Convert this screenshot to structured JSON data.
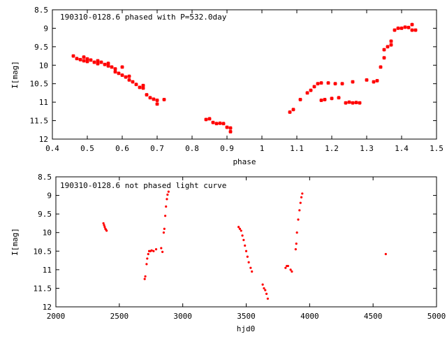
{
  "chart_data": [
    {
      "type": "scatter",
      "title": "190310-0128.6 phased with P=532.0day",
      "xlabel": "phase",
      "ylabel": "I[mag]",
      "xlim": [
        0.4,
        1.5
      ],
      "ylim": [
        12,
        8.5
      ],
      "y_inverted": true,
      "xticks": [
        "0.4",
        "0.5",
        "0.6",
        "0.7",
        "0.8",
        "0.9",
        "1",
        "1.1",
        "1.2",
        "1.3",
        "1.4",
        "1.5"
      ],
      "yticks": [
        "8.5",
        "9",
        "9.5",
        "10",
        "10.5",
        "11",
        "11.5",
        "12"
      ],
      "grid": false,
      "marker": "cross",
      "series_color": "#ff0000",
      "points": [
        [
          0.46,
          9.75
        ],
        [
          0.47,
          9.82
        ],
        [
          0.48,
          9.85
        ],
        [
          0.49,
          9.78
        ],
        [
          0.49,
          9.88
        ],
        [
          0.5,
          9.83
        ],
        [
          0.5,
          9.9
        ],
        [
          0.51,
          9.86
        ],
        [
          0.52,
          9.92
        ],
        [
          0.53,
          9.88
        ],
        [
          0.53,
          9.96
        ],
        [
          0.54,
          9.92
        ],
        [
          0.55,
          9.98
        ],
        [
          0.56,
          9.95
        ],
        [
          0.56,
          10.02
        ],
        [
          0.57,
          10.05
        ],
        [
          0.58,
          10.1
        ],
        [
          0.58,
          10.18
        ],
        [
          0.59,
          10.22
        ],
        [
          0.6,
          10.27
        ],
        [
          0.6,
          10.05
        ],
        [
          0.61,
          10.32
        ],
        [
          0.62,
          10.3
        ],
        [
          0.62,
          10.4
        ],
        [
          0.63,
          10.45
        ],
        [
          0.64,
          10.52
        ],
        [
          0.65,
          10.6
        ],
        [
          0.66,
          10.62
        ],
        [
          0.66,
          10.55
        ],
        [
          0.67,
          10.8
        ],
        [
          0.68,
          10.88
        ],
        [
          0.69,
          10.92
        ],
        [
          0.7,
          10.95
        ],
        [
          0.7,
          11.05
        ],
        [
          0.72,
          10.93
        ],
        [
          0.84,
          11.47
        ],
        [
          0.85,
          11.45
        ],
        [
          0.86,
          11.55
        ],
        [
          0.87,
          11.58
        ],
        [
          0.88,
          11.57
        ],
        [
          0.89,
          11.58
        ],
        [
          0.9,
          11.68
        ],
        [
          0.91,
          11.7
        ],
        [
          0.91,
          11.8
        ],
        [
          1.08,
          11.27
        ],
        [
          1.09,
          11.2
        ],
        [
          1.11,
          10.93
        ],
        [
          1.13,
          10.75
        ],
        [
          1.14,
          10.68
        ],
        [
          1.15,
          10.58
        ],
        [
          1.16,
          10.5
        ],
        [
          1.17,
          10.48
        ],
        [
          1.17,
          10.95
        ],
        [
          1.18,
          10.93
        ],
        [
          1.19,
          10.48
        ],
        [
          1.2,
          10.9
        ],
        [
          1.21,
          10.5
        ],
        [
          1.22,
          10.88
        ],
        [
          1.23,
          10.5
        ],
        [
          1.24,
          11.02
        ],
        [
          1.25,
          11.0
        ],
        [
          1.26,
          10.45
        ],
        [
          1.26,
          11.02
        ],
        [
          1.27,
          11.01
        ],
        [
          1.28,
          11.02
        ],
        [
          1.3,
          10.4
        ],
        [
          1.32,
          10.45
        ],
        [
          1.33,
          10.42
        ],
        [
          1.34,
          10.05
        ],
        [
          1.35,
          9.8
        ],
        [
          1.35,
          9.58
        ],
        [
          1.36,
          9.5
        ],
        [
          1.37,
          9.35
        ],
        [
          1.37,
          9.45
        ],
        [
          1.38,
          9.05
        ],
        [
          1.39,
          9.0
        ],
        [
          1.4,
          9.0
        ],
        [
          1.41,
          8.97
        ],
        [
          1.42,
          8.98
        ],
        [
          1.43,
          8.9
        ],
        [
          1.43,
          9.05
        ],
        [
          1.44,
          9.05
        ]
      ]
    },
    {
      "type": "scatter",
      "title": "190310-0128.6 not phased light curve",
      "xlabel": "hjd0",
      "ylabel": "I[mag]",
      "xlim": [
        2000,
        5000
      ],
      "ylim": [
        12,
        8.5
      ],
      "y_inverted": true,
      "xticks": [
        "2000",
        "2500",
        "3000",
        "3500",
        "4000",
        "4500",
        "5000"
      ],
      "yticks": [
        "8.5",
        "9",
        "9.5",
        "10",
        "10.5",
        "11",
        "11.5",
        "12"
      ],
      "grid": false,
      "marker": "dot",
      "series_color": "#ff0000",
      "points": [
        [
          2375,
          9.75
        ],
        [
          2380,
          9.8
        ],
        [
          2385,
          9.85
        ],
        [
          2390,
          9.9
        ],
        [
          2395,
          9.92
        ],
        [
          2400,
          9.95
        ],
        [
          2700,
          11.25
        ],
        [
          2705,
          11.18
        ],
        [
          2715,
          10.85
        ],
        [
          2720,
          10.7
        ],
        [
          2728,
          10.58
        ],
        [
          2735,
          10.5
        ],
        [
          2745,
          10.5
        ],
        [
          2755,
          10.48
        ],
        [
          2770,
          10.5
        ],
        [
          2790,
          10.45
        ],
        [
          2830,
          10.42
        ],
        [
          2840,
          10.52
        ],
        [
          2850,
          10.0
        ],
        [
          2855,
          9.9
        ],
        [
          2862,
          9.55
        ],
        [
          2868,
          9.3
        ],
        [
          2875,
          9.1
        ],
        [
          2880,
          8.98
        ],
        [
          2888,
          8.9
        ],
        [
          3440,
          9.85
        ],
        [
          3450,
          9.9
        ],
        [
          3460,
          9.95
        ],
        [
          3470,
          10.08
        ],
        [
          3480,
          10.2
        ],
        [
          3490,
          10.35
        ],
        [
          3500,
          10.5
        ],
        [
          3510,
          10.65
        ],
        [
          3520,
          10.8
        ],
        [
          3535,
          10.95
        ],
        [
          3545,
          11.05
        ],
        [
          3630,
          11.4
        ],
        [
          3640,
          11.5
        ],
        [
          3650,
          11.55
        ],
        [
          3660,
          11.65
        ],
        [
          3670,
          11.78
        ],
        [
          3810,
          10.95
        ],
        [
          3820,
          10.9
        ],
        [
          3830,
          10.9
        ],
        [
          3850,
          11.0
        ],
        [
          3860,
          11.05
        ],
        [
          3890,
          10.45
        ],
        [
          3895,
          10.3
        ],
        [
          3900,
          10.0
        ],
        [
          3910,
          9.65
        ],
        [
          3920,
          9.4
        ],
        [
          3928,
          9.2
        ],
        [
          3935,
          9.05
        ],
        [
          3942,
          8.95
        ],
        [
          4600,
          10.58
        ]
      ]
    }
  ]
}
